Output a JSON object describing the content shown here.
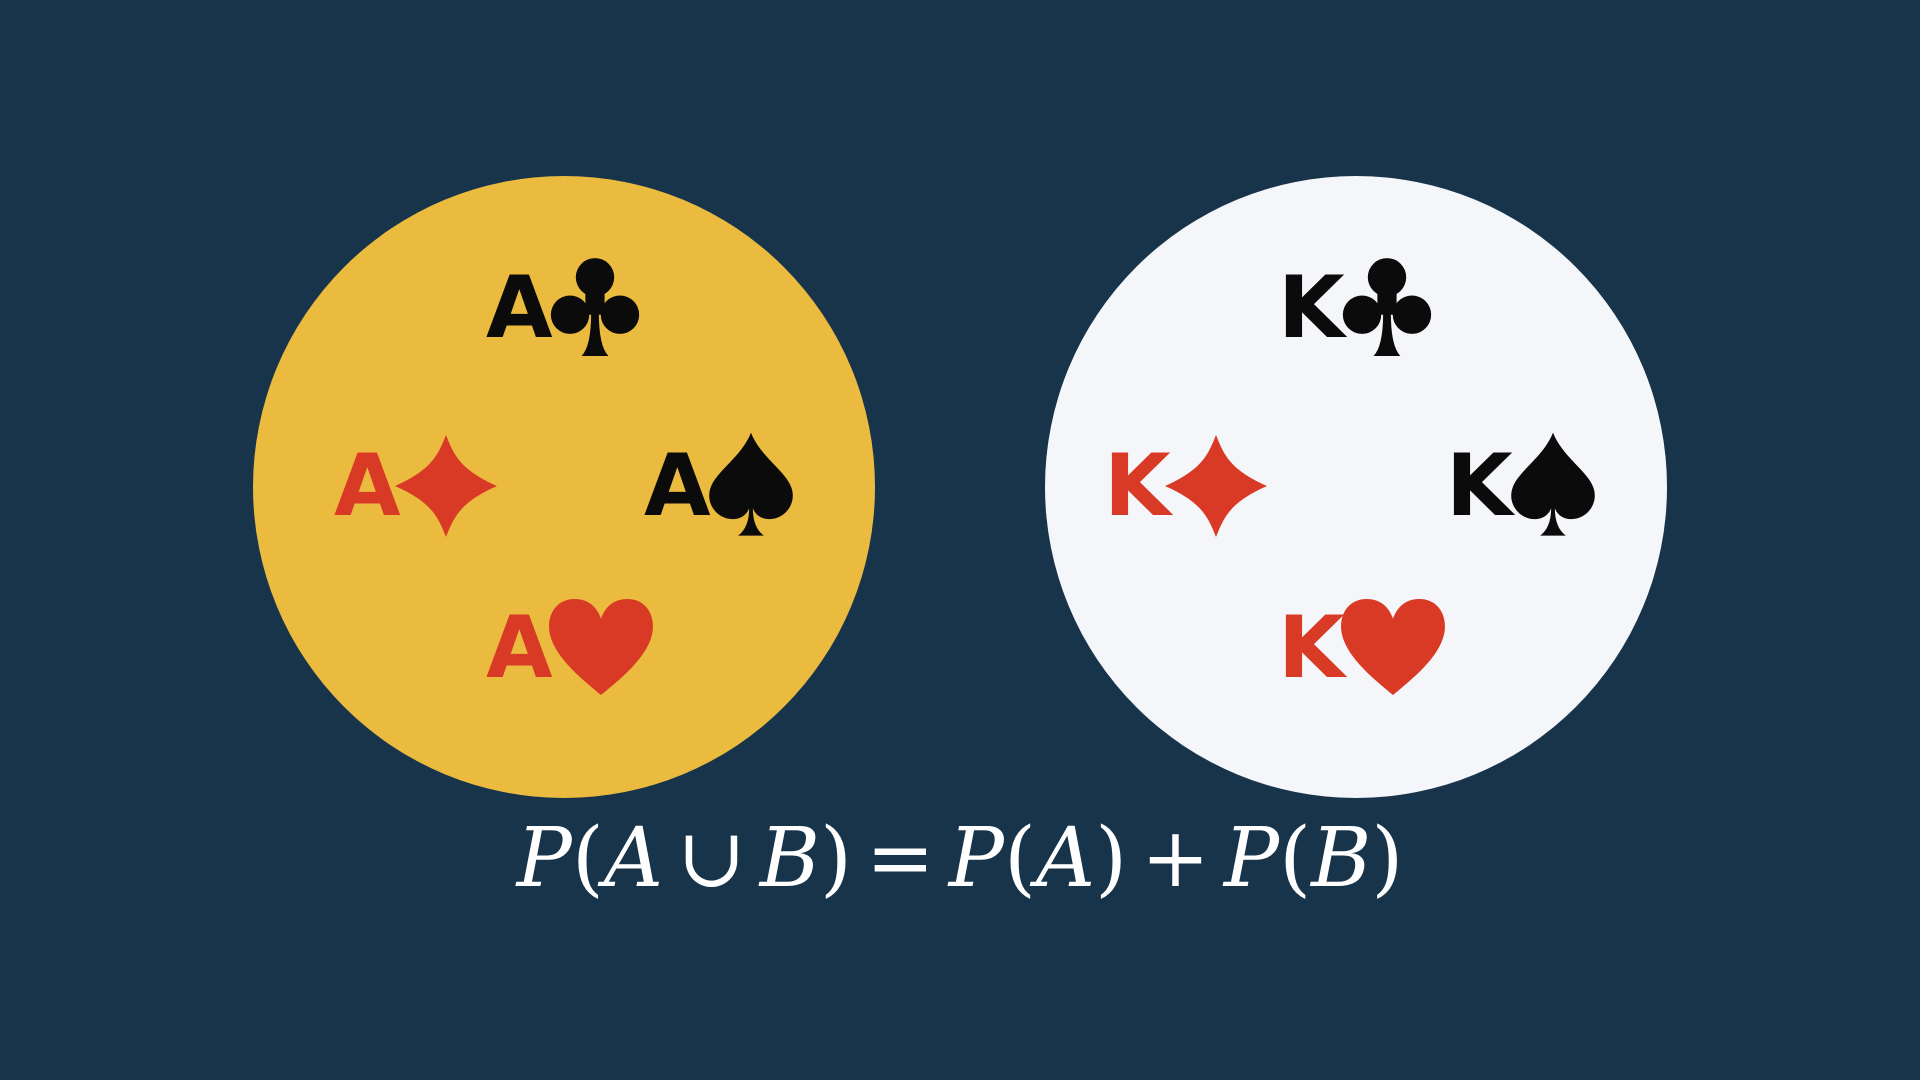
{
  "set_a": {
    "fill": "#ebbb40",
    "cards": [
      {
        "rank": "A",
        "suit": "club-icon",
        "color": "#0b0b0b"
      },
      {
        "rank": "A",
        "suit": "diamond-icon",
        "color": "#d93a26"
      },
      {
        "rank": "A",
        "suit": "spade-icon",
        "color": "#0b0b0b"
      },
      {
        "rank": "A",
        "suit": "heart-icon",
        "color": "#d93a26"
      }
    ]
  },
  "set_b": {
    "fill": "#f5f6f9",
    "cards": [
      {
        "rank": "K",
        "suit": "club-icon",
        "color": "#0b0b0b"
      },
      {
        "rank": "K",
        "suit": "diamond-icon",
        "color": "#d93a26"
      },
      {
        "rank": "K",
        "suit": "spade-icon",
        "color": "#0b0b0b"
      },
      {
        "rank": "K",
        "suit": "heart-icon",
        "color": "#d93a26"
      }
    ]
  },
  "formula": {
    "p": "P",
    "a": "A",
    "b": "B",
    "union": "∪",
    "equals": "=",
    "plus": "+",
    "open": "(",
    "close": ")"
  },
  "colors": {
    "background": "#17344b",
    "black_suit": "#0b0b0b",
    "red_suit": "#d93a26",
    "formula_text": "#ffffff"
  }
}
